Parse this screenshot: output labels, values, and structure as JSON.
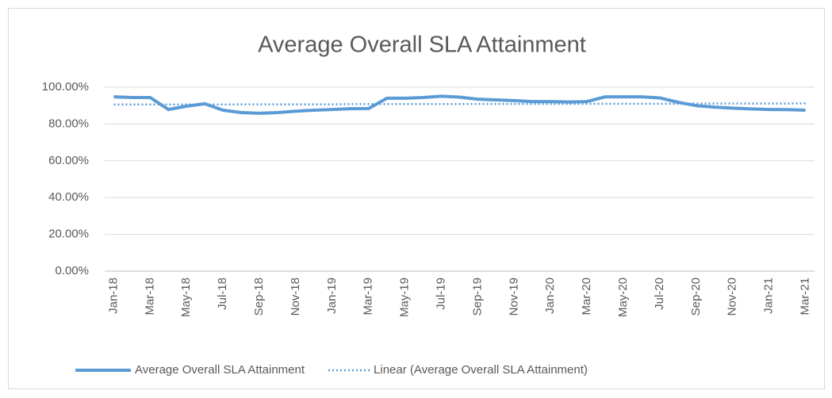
{
  "chart_data": {
    "type": "line",
    "title": "Average Overall SLA Attainment",
    "categories": [
      "Jan-18",
      null,
      "Mar-18",
      null,
      "May-18",
      null,
      "Jul-18",
      null,
      "Sep-18",
      null,
      "Nov-18",
      null,
      "Jan-19",
      null,
      "Mar-19",
      null,
      "May-19",
      null,
      "Jul-19",
      null,
      "Sep-19",
      null,
      "Nov-19",
      null,
      "Jan-20",
      null,
      "Mar-20",
      null,
      "May-20",
      null,
      "Jul-20",
      null,
      "Sep-20",
      null,
      "Nov-20",
      null,
      "Jan-21",
      null,
      "Mar-21"
    ],
    "series": [
      {
        "name": "Average Overall SLA Attainment",
        "color": "#5b9bd5",
        "style": "solid",
        "values": [
          94.8,
          94.4,
          94.4,
          87.9,
          89.7,
          91.0,
          87.5,
          86.2,
          85.8,
          86.2,
          87.0,
          87.5,
          87.9,
          88.3,
          88.4,
          94.0,
          94.0,
          94.4,
          95.1,
          94.6,
          93.5,
          93.1,
          92.7,
          92.2,
          92.2,
          92.0,
          92.2,
          94.8,
          94.8,
          94.8,
          94.2,
          91.8,
          90.0,
          89.2,
          88.6,
          88.2,
          87.9,
          87.8,
          87.5
        ]
      },
      {
        "name": "Linear (Average Overall SLA Attainment)",
        "color": "#5b9bd5",
        "style": "dotted",
        "values": [
          90.6,
          90.6,
          90.6,
          90.6,
          90.6,
          90.6,
          90.6,
          90.7,
          90.7,
          90.7,
          90.7,
          90.7,
          90.7,
          90.8,
          90.8,
          90.8,
          90.8,
          90.8,
          90.8,
          90.8,
          90.9,
          90.9,
          90.9,
          90.9,
          90.9,
          90.9,
          91.0,
          91.0,
          91.0,
          91.0,
          91.0,
          91.0,
          91.1,
          91.1,
          91.1,
          91.1,
          91.1,
          91.1,
          91.2
        ]
      }
    ],
    "ylim": [
      0,
      100
    ],
    "yticks": [
      {
        "value": 0,
        "label": "0.00%"
      },
      {
        "value": 20,
        "label": "20.00%"
      },
      {
        "value": 40,
        "label": "40.00%"
      },
      {
        "value": 60,
        "label": "60.00%"
      },
      {
        "value": 80,
        "label": "80.00%"
      },
      {
        "value": 100,
        "label": "100.00%"
      }
    ],
    "grid": true,
    "legend": "bottom"
  }
}
